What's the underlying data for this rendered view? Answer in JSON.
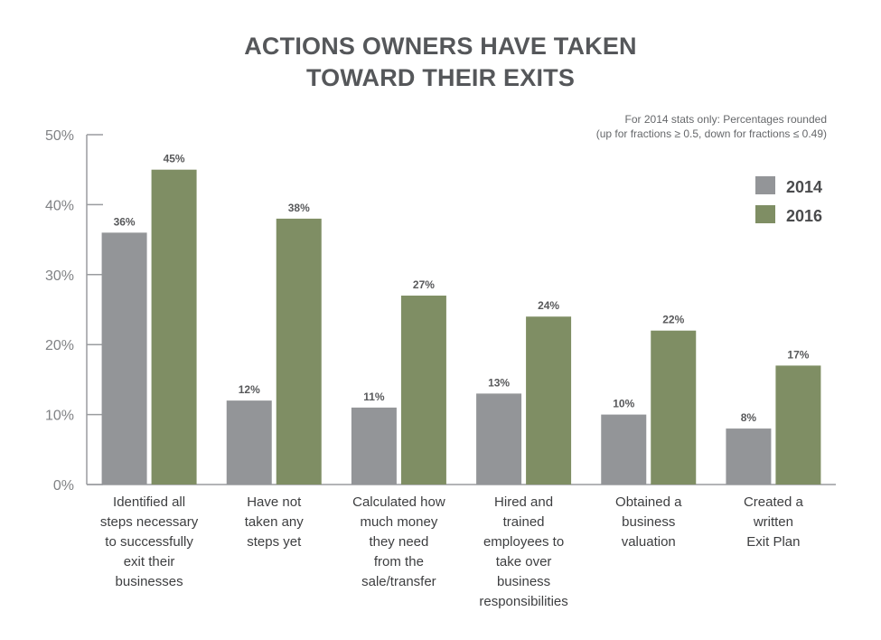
{
  "chart_data": {
    "type": "bar",
    "title_line1": "ACTIONS OWNERS HAVE TAKEN",
    "title_line2": "TOWARD THEIR EXITS",
    "note_line1": "For 2014 stats only: Percentages rounded",
    "note_line2": "(up for fractions ≥ 0.5, down for fractions ≤ 0.49)",
    "categories": [
      "Identified all steps necessary to successfully exit their businesses",
      "Have not taken any steps yet",
      "Calculated how much money they need from the sale/transfer",
      "Hired and trained employees to take over business responsibilities",
      "Obtained a business valuation",
      "Created a written Exit Plan"
    ],
    "category_lines": [
      [
        "Identified all",
        "steps necessary",
        "to successfully",
        "exit their",
        "businesses"
      ],
      [
        "Have not",
        "taken any",
        "steps yet"
      ],
      [
        "Calculated how",
        "much money",
        "they need",
        "from the",
        "sale/transfer"
      ],
      [
        "Hired and",
        "trained",
        "employees to",
        "take over",
        "business",
        "responsibilities"
      ],
      [
        "Obtained a",
        "business",
        "valuation"
      ],
      [
        "Created a",
        "written",
        "Exit Plan"
      ]
    ],
    "series": [
      {
        "name": "2014",
        "color": "#939598",
        "values": [
          36,
          12,
          11,
          13,
          10,
          8
        ]
      },
      {
        "name": "2016",
        "color": "#7f8e64",
        "values": [
          45,
          38,
          27,
          24,
          22,
          17
        ]
      }
    ],
    "yticks": [
      "0%",
      "10%",
      "20%",
      "30%",
      "40%",
      "50%"
    ],
    "ylim": [
      0,
      50
    ],
    "value_suffix": "%",
    "legend_position": "top-right",
    "grid": false
  }
}
